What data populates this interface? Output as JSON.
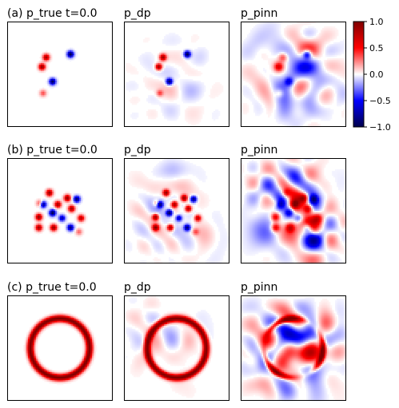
{
  "chart_data": {
    "type": "heatmap",
    "colormap": "seismic",
    "colorbar": {
      "range": [
        -1.0,
        1.0
      ],
      "ticks": [
        1.0,
        0.5,
        0.0,
        -0.5,
        -1.0
      ],
      "tick_labels": [
        "1.0",
        "0.5",
        "0.0",
        "−0.5",
        "−1.0"
      ]
    },
    "rows": [
      {
        "panels": [
          {
            "title": "(a) p_true t=0.0",
            "kind": "blobs",
            "noise": 0
          },
          {
            "title": "p_dp",
            "kind": "blobs",
            "noise": 0.06
          },
          {
            "title": "p_pinn",
            "kind": "blobs_pinn",
            "noise": 0.25
          }
        ],
        "blobs": [
          {
            "x": 0.37,
            "y": 0.34,
            "v": 0.85
          },
          {
            "x": 0.6,
            "y": 0.31,
            "v": -1.0
          },
          {
            "x": 0.33,
            "y": 0.43,
            "v": 0.9
          },
          {
            "x": 0.43,
            "y": 0.57,
            "v": -0.95
          },
          {
            "x": 0.34,
            "y": 0.68,
            "v": 0.35
          }
        ]
      },
      {
        "panels": [
          {
            "title": "(b) p_true t=0.0",
            "kind": "blobs",
            "noise": 0
          },
          {
            "title": "p_dp",
            "kind": "blobs",
            "noise": 0.12
          },
          {
            "title": "p_pinn",
            "kind": "blobs_pinn",
            "noise": 0.3
          }
        ],
        "blobs": [
          {
            "x": 0.4,
            "y": 0.33,
            "v": 0.9
          },
          {
            "x": 0.57,
            "y": 0.38,
            "v": 0.9
          },
          {
            "x": 0.66,
            "y": 0.39,
            "v": -0.9
          },
          {
            "x": 0.34,
            "y": 0.44,
            "v": -0.9
          },
          {
            "x": 0.48,
            "y": 0.44,
            "v": 0.85
          },
          {
            "x": 0.31,
            "y": 0.43,
            "v": 0.45
          },
          {
            "x": 0.43,
            "y": 0.52,
            "v": -1.0
          },
          {
            "x": 0.61,
            "y": 0.48,
            "v": 0.85
          },
          {
            "x": 0.3,
            "y": 0.56,
            "v": 0.9
          },
          {
            "x": 0.52,
            "y": 0.57,
            "v": -0.7
          },
          {
            "x": 0.7,
            "y": 0.57,
            "v": 0.75
          },
          {
            "x": 0.3,
            "y": 0.66,
            "v": 0.85
          },
          {
            "x": 0.44,
            "y": 0.66,
            "v": 0.9
          },
          {
            "x": 0.6,
            "y": 0.66,
            "v": -0.85
          },
          {
            "x": 0.68,
            "y": 0.7,
            "v": 0.3
          }
        ]
      },
      {
        "panels": [
          {
            "title": "(c) p_true t=0.0",
            "kind": "ring",
            "noise": 0
          },
          {
            "title": "p_dp",
            "kind": "ring",
            "noise": 0.08
          },
          {
            "title": "p_pinn",
            "kind": "ring_pinn",
            "noise": 0.35
          }
        ],
        "ring": {
          "cx": 0.5,
          "cy": 0.5,
          "r": 0.28,
          "width": 0.045,
          "v": 1.0
        }
      }
    ]
  }
}
